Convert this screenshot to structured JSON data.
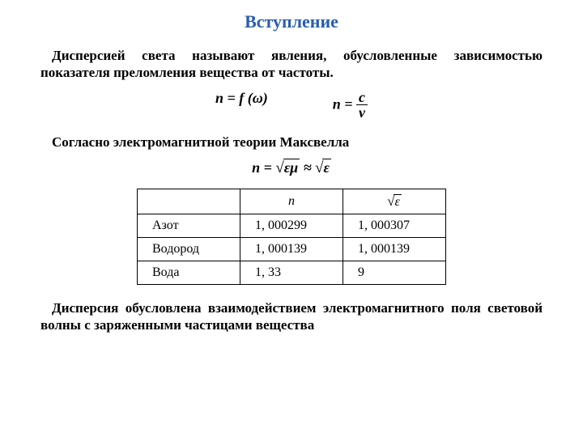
{
  "title": "Вступление",
  "para1": "Дисперсией света называют явления, обусловленные зависимостью показателя преломления вещества от частоты.",
  "formula_nfw": "n = f (ω)",
  "formula_ncv_lhs": "n =",
  "formula_ncv_num": "c",
  "formula_ncv_den": "v",
  "para2": "Согласно электромагнитной теории Максвелла",
  "formula_maxwell_pre": "n = ",
  "formula_maxwell_rad1": "εμ",
  "formula_maxwell_approx": " ≈ ",
  "formula_maxwell_rad2": "ε",
  "table": {
    "header_n": "n",
    "header_sqrt_rad": "ε",
    "rows": [
      {
        "name": "Азот",
        "n": "1, 000299",
        "s": "1, 000307"
      },
      {
        "name": "Водород",
        "n": "1, 000139",
        "s": "1, 000139"
      },
      {
        "name": "Вода",
        "n": "1, 33",
        "s": "9"
      }
    ]
  },
  "para3": "Дисперсия обусловлена взаимодействием электромагнитного поля световой волны с заряженными частицами вещества"
}
